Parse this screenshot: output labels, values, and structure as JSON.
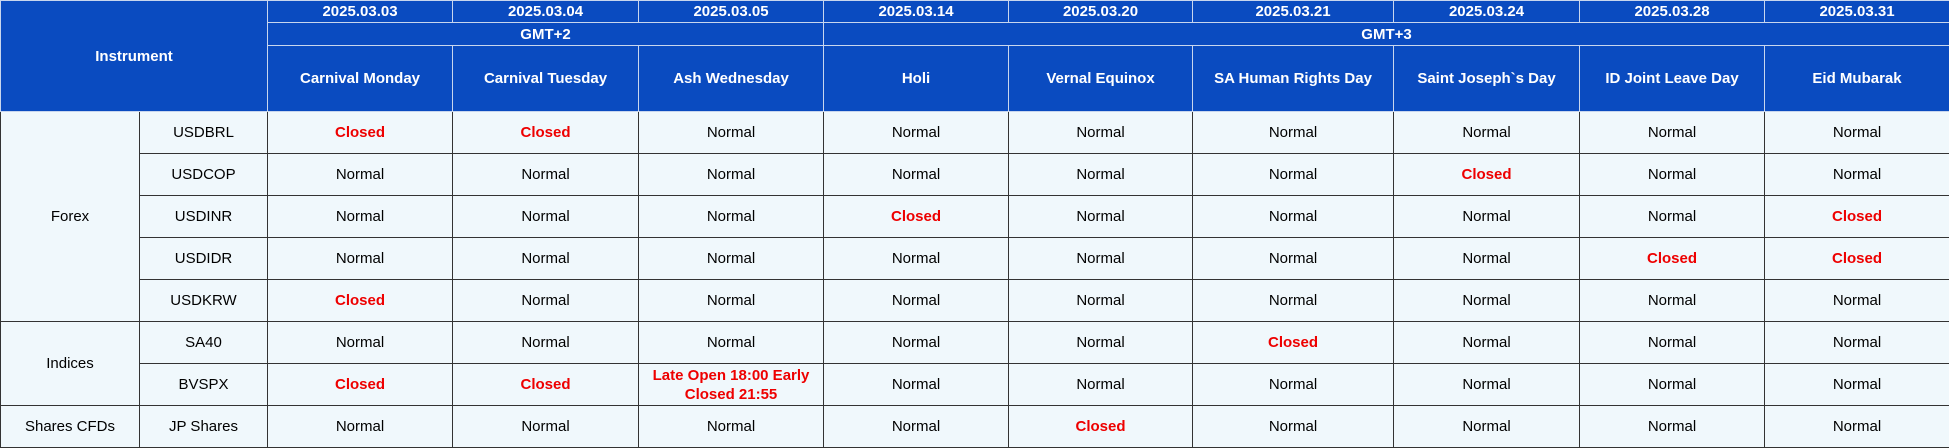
{
  "header": {
    "instrument": "Instrument",
    "dates": [
      "2025.03.03",
      "2025.03.04",
      "2025.03.05",
      "2025.03.14",
      "2025.03.20",
      "2025.03.21",
      "2025.03.24",
      "2025.03.28",
      "2025.03.31"
    ],
    "timezones": [
      "GMT+2",
      "GMT+3"
    ],
    "holidays": [
      "Carnival Monday",
      "Carnival Tuesday",
      "Ash Wednesday",
      "Holi",
      "Vernal Equinox",
      "SA Human Rights Day",
      "Saint Joseph`s Day",
      "ID Joint Leave Day",
      "Eid Mubarak"
    ]
  },
  "groups": [
    {
      "name": "Forex",
      "rows": [
        {
          "instrument": "USDBRL",
          "statuses": [
            "Closed",
            "Closed",
            "Normal",
            "Normal",
            "Normal",
            "Normal",
            "Normal",
            "Normal",
            "Normal"
          ]
        },
        {
          "instrument": "USDCOP",
          "statuses": [
            "Normal",
            "Normal",
            "Normal",
            "Normal",
            "Normal",
            "Normal",
            "Closed",
            "Normal",
            "Normal"
          ]
        },
        {
          "instrument": "USDINR",
          "statuses": [
            "Normal",
            "Normal",
            "Normal",
            "Closed",
            "Normal",
            "Normal",
            "Normal",
            "Normal",
            "Closed"
          ]
        },
        {
          "instrument": "USDIDR",
          "statuses": [
            "Normal",
            "Normal",
            "Normal",
            "Normal",
            "Normal",
            "Normal",
            "Normal",
            "Closed",
            "Closed"
          ]
        },
        {
          "instrument": "USDKRW",
          "statuses": [
            "Closed",
            "Normal",
            "Normal",
            "Normal",
            "Normal",
            "Normal",
            "Normal",
            "Normal",
            "Normal"
          ]
        }
      ]
    },
    {
      "name": "Indices",
      "rows": [
        {
          "instrument": "SA40",
          "statuses": [
            "Normal",
            "Normal",
            "Normal",
            "Normal",
            "Normal",
            "Closed",
            "Normal",
            "Normal",
            "Normal"
          ]
        },
        {
          "instrument": "BVSPX",
          "statuses": [
            "Closed",
            "Closed",
            "Late Open 18:00 Early Closed 21:55",
            "Normal",
            "Normal",
            "Normal",
            "Normal",
            "Normal",
            "Normal"
          ]
        }
      ]
    },
    {
      "name": "Shares CFDs",
      "rows": [
        {
          "instrument": "JP Shares",
          "statuses": [
            "Normal",
            "Normal",
            "Normal",
            "Normal",
            "Closed",
            "Normal",
            "Normal",
            "Normal",
            "Normal"
          ]
        }
      ]
    }
  ]
}
